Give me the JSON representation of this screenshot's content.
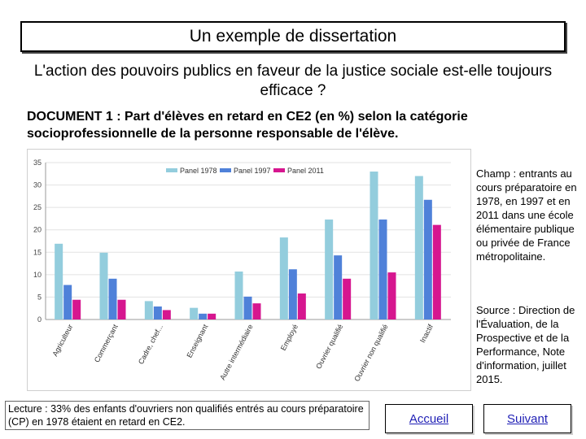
{
  "header": {
    "title": "Un exemple de dissertation",
    "subject": "L'action des pouvoirs publics en faveur de la justice sociale est-elle toujours efficace ?",
    "document_title": "DOCUMENT 1 : Part d'élèves en retard en CE2 (en %) selon la catégorie socioprofessionnelle de la personne responsable de l'élève."
  },
  "side_notes": {
    "champ": "Champ : entrants au cours préparatoire en 1978, en 1997 et en 2011 dans une école élémentaire publique ou privée de France métropolitaine.",
    "source": "Source : Direction de l'Évaluation, de la Prospective et de la Performance, Note d'information, juillet 2015."
  },
  "lecture": "Lecture : 33% des enfants d'ouvriers non qualifiés entrés au cours préparatoire (CP) en 1978 étaient en retard en CE2.",
  "nav": {
    "accueil": "Accueil",
    "suivant": "Suivant"
  },
  "colors": {
    "panel1978": "#93cddd",
    "panel1997": "#4f81d9",
    "panel2011": "#d6168f"
  },
  "chart_data": {
    "type": "bar",
    "title": "",
    "xlabel": "",
    "ylabel": "",
    "ylim": [
      0,
      35
    ],
    "yticks": [
      "0",
      "5",
      "10",
      "15",
      "20",
      "25",
      "30",
      "35"
    ],
    "legend": "top",
    "categories": [
      "Agriculteur",
      "Commerçant",
      "Cadre, chef...",
      "Enseignant",
      "Autre intermédiaire",
      "Employé",
      "Ouvrier qualifié",
      "Ouvrier non qualifié",
      "Inactif"
    ],
    "series": [
      {
        "name": "Panel 1978",
        "values": [
          16.9,
          14.9,
          4.1,
          2.6,
          10.7,
          18.3,
          22.3,
          33,
          32
        ]
      },
      {
        "name": "Panel 1997",
        "values": [
          7.7,
          9.1,
          2.9,
          1.3,
          5.1,
          11.2,
          14.3,
          22.3,
          26.7
        ]
      },
      {
        "name": "Panel 2011",
        "values": [
          4.4,
          4.4,
          2.1,
          1.3,
          3.6,
          5.8,
          9.1,
          10.5,
          21.1
        ]
      }
    ]
  }
}
